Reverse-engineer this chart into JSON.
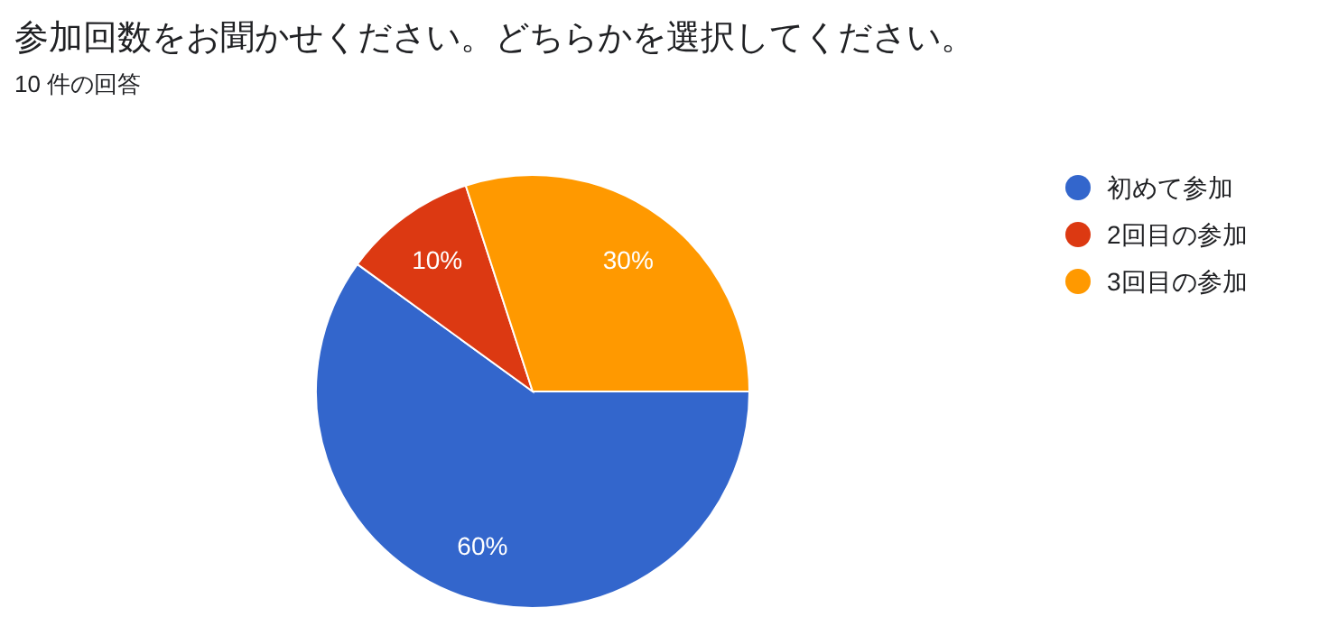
{
  "chart_data": {
    "type": "pie",
    "title": "参加回数をお聞かせください。どちらかを選択してください。",
    "subtitle": "10 件の回答",
    "categories": [
      "初めて参加",
      "2回目の参加",
      "3回目の参加"
    ],
    "values": [
      60,
      10,
      30
    ],
    "colors": [
      "#3366cc",
      "#dc3912",
      "#ff9900"
    ],
    "value_labels": [
      "60%",
      "10%",
      "30%"
    ],
    "legend": "right"
  }
}
